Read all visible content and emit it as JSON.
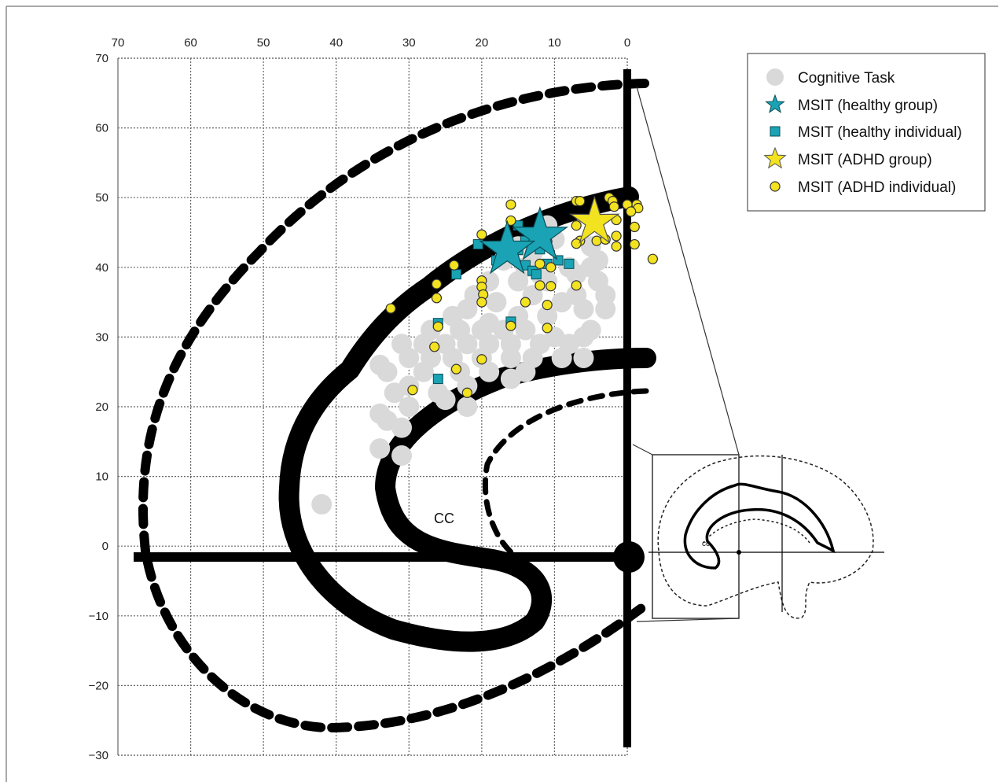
{
  "chart_data": {
    "type": "scatter",
    "x_axis": {
      "range": [
        70,
        0
      ],
      "ticks": [
        "70",
        "60",
        "50",
        "40",
        "30",
        "20",
        "10",
        "0"
      ],
      "position": "top",
      "reversed": true
    },
    "y_axis": {
      "range": [
        -30,
        70
      ],
      "ticks": [
        "70",
        "60",
        "50",
        "40",
        "30",
        "20",
        "10",
        "0",
        "−10",
        "−20",
        "−30"
      ]
    },
    "grid": true,
    "annotations": [
      {
        "text": "CC"
      },
      {
        "text": "cc"
      }
    ],
    "legend": {
      "placement": "top-right",
      "entries": [
        {
          "name": "Cognitive Task",
          "marker": "circle",
          "color": "#d9d9d9"
        },
        {
          "name": "MSIT (healthy group)",
          "marker": "star",
          "color": "#1aa3b4"
        },
        {
          "name": "MSIT (healthy individual)",
          "marker": "square",
          "color": "#1aa3b4"
        },
        {
          "name": "MSIT (ADHD group)",
          "marker": "star",
          "color": "#f2e21f"
        },
        {
          "name": "MSIT (ADHD individual)",
          "marker": "circle",
          "color": "#f2e21f"
        }
      ]
    },
    "series": [
      {
        "name": "Cognitive Task",
        "color": "#d9d9d9",
        "points": [
          [
            11,
            46
          ],
          [
            10,
            44
          ],
          [
            15,
            43
          ],
          [
            13,
            42
          ],
          [
            17,
            41
          ],
          [
            14,
            40
          ],
          [
            8,
            40
          ],
          [
            12,
            39
          ],
          [
            19,
            38
          ],
          [
            15,
            38
          ],
          [
            11,
            38
          ],
          [
            7,
            39
          ],
          [
            5,
            43
          ],
          [
            4,
            41
          ],
          [
            5,
            40
          ],
          [
            4,
            38
          ],
          [
            3,
            36
          ],
          [
            7,
            36
          ],
          [
            18,
            35
          ],
          [
            21,
            36
          ],
          [
            13,
            36
          ],
          [
            9,
            35
          ],
          [
            6,
            34
          ],
          [
            3,
            34
          ],
          [
            22,
            34
          ],
          [
            15,
            33
          ],
          [
            11,
            33
          ],
          [
            24,
            33
          ],
          [
            19,
            32
          ],
          [
            14,
            31
          ],
          [
            17,
            31
          ],
          [
            20,
            31
          ],
          [
            23,
            31
          ],
          [
            5,
            31
          ],
          [
            6,
            30
          ],
          [
            27,
            31
          ],
          [
            10,
            30
          ],
          [
            8,
            29
          ],
          [
            12,
            29
          ],
          [
            16,
            29
          ],
          [
            19,
            29
          ],
          [
            22,
            29
          ],
          [
            25,
            29
          ],
          [
            28,
            29
          ],
          [
            31,
            29
          ],
          [
            6,
            27
          ],
          [
            9,
            27
          ],
          [
            13,
            27
          ],
          [
            16,
            27
          ],
          [
            20,
            27
          ],
          [
            24,
            27
          ],
          [
            27,
            27
          ],
          [
            30,
            27
          ],
          [
            14,
            25
          ],
          [
            19,
            25
          ],
          [
            23,
            25
          ],
          [
            28,
            25
          ],
          [
            33,
            25
          ],
          [
            34,
            26
          ],
          [
            16,
            24
          ],
          [
            22,
            23
          ],
          [
            30,
            23
          ],
          [
            26,
            22
          ],
          [
            32,
            22
          ],
          [
            25,
            21
          ],
          [
            22,
            20
          ],
          [
            30,
            20
          ],
          [
            34,
            19
          ],
          [
            33,
            18
          ],
          [
            31,
            17
          ],
          [
            34,
            14
          ],
          [
            31,
            13
          ],
          [
            42,
            6
          ]
        ]
      },
      {
        "name": "MSIT (healthy group)",
        "color": "#1aa3b4",
        "points": [
          [
            12,
            44.5
          ],
          [
            16.5,
            42.5
          ]
        ]
      },
      {
        "name": "MSIT (healthy individual)",
        "color": "#1aa3b4",
        "points": [
          [
            15,
            46
          ],
          [
            20.5,
            43.3
          ],
          [
            14,
            43.8
          ],
          [
            12,
            42.6
          ],
          [
            15,
            42.5
          ],
          [
            18,
            41
          ],
          [
            14,
            40.3
          ],
          [
            8,
            40.5
          ],
          [
            11,
            40.5
          ],
          [
            13,
            39.5
          ],
          [
            9.5,
            41
          ],
          [
            12.5,
            39
          ],
          [
            23.5,
            39
          ],
          [
            26,
            32
          ],
          [
            16,
            32.2
          ],
          [
            26,
            24
          ]
        ]
      },
      {
        "name": "MSIT (ADHD group)",
        "color": "#f2e21f",
        "points": [
          [
            4.5,
            46.5
          ]
        ]
      },
      {
        "name": "MSIT (ADHD individual)",
        "color": "#f2e21f",
        "points": [
          [
            7,
            49.5
          ],
          [
            6.5,
            49.5
          ],
          [
            2.5,
            50
          ],
          [
            2,
            49.5
          ],
          [
            0,
            49
          ],
          [
            -1.3,
            49
          ],
          [
            -1.5,
            48.5
          ],
          [
            1.8,
            48.7
          ],
          [
            -0.5,
            48
          ],
          [
            16,
            49
          ],
          [
            4.5,
            48
          ],
          [
            1.5,
            46.8
          ],
          [
            7,
            46
          ],
          [
            4,
            46.3
          ],
          [
            16,
            46.7
          ],
          [
            20,
            44.7
          ],
          [
            11,
            43.7
          ],
          [
            4.2,
            43.8
          ],
          [
            1.5,
            44.5
          ],
          [
            6.5,
            43.8
          ],
          [
            -1,
            43.3
          ],
          [
            -1,
            45.8
          ],
          [
            1.5,
            43
          ],
          [
            3,
            44
          ],
          [
            7,
            43.4
          ],
          [
            -3.5,
            41.2
          ],
          [
            10.5,
            40
          ],
          [
            12,
            40.5
          ],
          [
            23.8,
            40.3
          ],
          [
            20,
            38.1
          ],
          [
            10.5,
            37.3
          ],
          [
            7,
            37.4
          ],
          [
            26.2,
            37.6
          ],
          [
            20,
            37.2
          ],
          [
            12,
            37.4
          ],
          [
            19.8,
            36.1
          ],
          [
            26.2,
            35.6
          ],
          [
            20,
            35
          ],
          [
            14,
            35
          ],
          [
            11,
            34.6
          ],
          [
            32.5,
            34.1
          ],
          [
            26,
            31.5
          ],
          [
            16,
            31.6
          ],
          [
            11,
            31.3
          ],
          [
            26.5,
            28.6
          ],
          [
            20,
            26.8
          ],
          [
            23.5,
            25.4
          ],
          [
            29.5,
            22.4
          ],
          [
            22,
            22
          ]
        ]
      }
    ]
  }
}
